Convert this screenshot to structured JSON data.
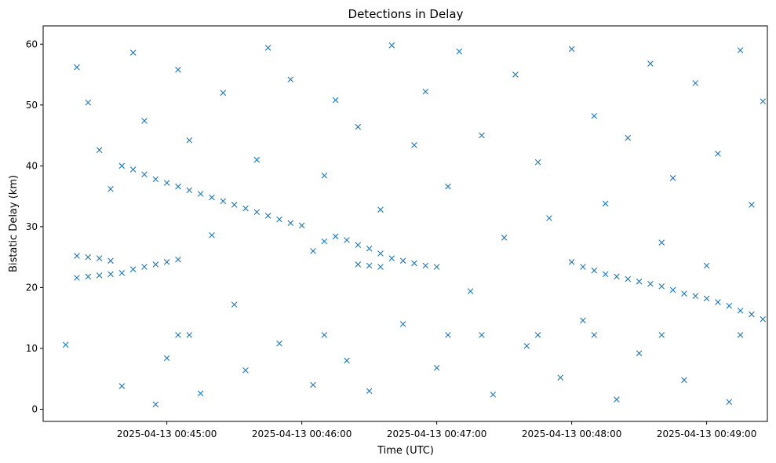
{
  "chart_data": {
    "type": "scatter",
    "title": "Detections in Delay",
    "xlabel": "Time (UTC)",
    "ylabel": "Bistatic Delay (km)",
    "xlim": [
      "2025-04-13 00:44:05",
      "2025-04-13 00:49:27"
    ],
    "ylim": [
      -2,
      63
    ],
    "x_ticks": [
      "2025-04-13 00:45:00",
      "2025-04-13 00:46:00",
      "2025-04-13 00:47:00",
      "2025-04-13 00:48:00",
      "2025-04-13 00:49:00"
    ],
    "y_ticks": [
      "0",
      "10",
      "20",
      "30",
      "40",
      "50",
      "60"
    ],
    "marker": "x",
    "color": "#1f77b4",
    "grid": false,
    "legend": "none",
    "series": [
      {
        "values": [
          {
            "x": "2025-04-13 00:44:20",
            "y": 21.6
          },
          {
            "x": "2025-04-13 00:44:25",
            "y": 21.8
          },
          {
            "x": "2025-04-13 00:44:30",
            "y": 22.0
          },
          {
            "x": "2025-04-13 00:44:35",
            "y": 22.2
          },
          {
            "x": "2025-04-13 00:44:40",
            "y": 22.4
          },
          {
            "x": "2025-04-13 00:44:45",
            "y": 23.0
          },
          {
            "x": "2025-04-13 00:44:50",
            "y": 23.4
          },
          {
            "x": "2025-04-13 00:44:55",
            "y": 23.8
          },
          {
            "x": "2025-04-13 00:45:00",
            "y": 24.2
          },
          {
            "x": "2025-04-13 00:45:05",
            "y": 24.6
          },
          {
            "x": "2025-04-13 00:44:20",
            "y": 25.2
          },
          {
            "x": "2025-04-13 00:44:25",
            "y": 25.0
          },
          {
            "x": "2025-04-13 00:44:30",
            "y": 24.8
          },
          {
            "x": "2025-04-13 00:44:35",
            "y": 24.4
          },
          {
            "x": "2025-04-13 00:44:40",
            "y": 40.0
          },
          {
            "x": "2025-04-13 00:44:45",
            "y": 39.4
          },
          {
            "x": "2025-04-13 00:44:50",
            "y": 38.6
          },
          {
            "x": "2025-04-13 00:44:55",
            "y": 37.8
          },
          {
            "x": "2025-04-13 00:45:00",
            "y": 37.2
          },
          {
            "x": "2025-04-13 00:45:05",
            "y": 36.6
          },
          {
            "x": "2025-04-13 00:45:10",
            "y": 36.0
          },
          {
            "x": "2025-04-13 00:45:15",
            "y": 35.4
          },
          {
            "x": "2025-04-13 00:45:20",
            "y": 34.8
          },
          {
            "x": "2025-04-13 00:45:25",
            "y": 34.2
          },
          {
            "x": "2025-04-13 00:45:30",
            "y": 33.6
          },
          {
            "x": "2025-04-13 00:45:35",
            "y": 33.0
          },
          {
            "x": "2025-04-13 00:45:40",
            "y": 32.4
          },
          {
            "x": "2025-04-13 00:45:45",
            "y": 31.8
          },
          {
            "x": "2025-04-13 00:45:50",
            "y": 31.2
          },
          {
            "x": "2025-04-13 00:45:55",
            "y": 30.6
          },
          {
            "x": "2025-04-13 00:46:00",
            "y": 30.2
          },
          {
            "x": "2025-04-13 00:46:05",
            "y": 26.0
          },
          {
            "x": "2025-04-13 00:46:10",
            "y": 27.6
          },
          {
            "x": "2025-04-13 00:46:15",
            "y": 28.4
          },
          {
            "x": "2025-04-13 00:46:20",
            "y": 27.8
          },
          {
            "x": "2025-04-13 00:46:25",
            "y": 27.0
          },
          {
            "x": "2025-04-13 00:46:30",
            "y": 26.4
          },
          {
            "x": "2025-04-13 00:46:35",
            "y": 25.6
          },
          {
            "x": "2025-04-13 00:46:40",
            "y": 24.8
          },
          {
            "x": "2025-04-13 00:46:45",
            "y": 24.4
          },
          {
            "x": "2025-04-13 00:46:50",
            "y": 24.0
          },
          {
            "x": "2025-04-13 00:46:55",
            "y": 23.6
          },
          {
            "x": "2025-04-13 00:47:00",
            "y": 23.4
          },
          {
            "x": "2025-04-13 00:46:25",
            "y": 23.8
          },
          {
            "x": "2025-04-13 00:46:30",
            "y": 23.6
          },
          {
            "x": "2025-04-13 00:46:35",
            "y": 23.4
          },
          {
            "x": "2025-04-13 00:48:00",
            "y": 24.2
          },
          {
            "x": "2025-04-13 00:48:05",
            "y": 23.4
          },
          {
            "x": "2025-04-13 00:48:10",
            "y": 22.8
          },
          {
            "x": "2025-04-13 00:48:15",
            "y": 22.2
          },
          {
            "x": "2025-04-13 00:48:20",
            "y": 21.8
          },
          {
            "x": "2025-04-13 00:48:25",
            "y": 21.4
          },
          {
            "x": "2025-04-13 00:48:30",
            "y": 21.0
          },
          {
            "x": "2025-04-13 00:48:35",
            "y": 20.6
          },
          {
            "x": "2025-04-13 00:48:40",
            "y": 20.2
          },
          {
            "x": "2025-04-13 00:48:45",
            "y": 19.6
          },
          {
            "x": "2025-04-13 00:48:50",
            "y": 19.0
          },
          {
            "x": "2025-04-13 00:48:55",
            "y": 18.6
          },
          {
            "x": "2025-04-13 00:49:00",
            "y": 18.2
          },
          {
            "x": "2025-04-13 00:49:05",
            "y": 17.6
          },
          {
            "x": "2025-04-13 00:49:10",
            "y": 17.0
          },
          {
            "x": "2025-04-13 00:49:15",
            "y": 16.2
          },
          {
            "x": "2025-04-13 00:49:20",
            "y": 15.6
          },
          {
            "x": "2025-04-13 00:49:25",
            "y": 14.8
          },
          {
            "x": "2025-04-13 00:45:05",
            "y": 12.2
          },
          {
            "x": "2025-04-13 00:45:10",
            "y": 12.2
          },
          {
            "x": "2025-04-13 00:46:10",
            "y": 12.2
          },
          {
            "x": "2025-04-13 00:47:05",
            "y": 12.2
          },
          {
            "x": "2025-04-13 00:47:20",
            "y": 12.2
          },
          {
            "x": "2025-04-13 00:47:45",
            "y": 12.2
          },
          {
            "x": "2025-04-13 00:48:10",
            "y": 12.2
          },
          {
            "x": "2025-04-13 00:48:40",
            "y": 12.2
          },
          {
            "x": "2025-04-13 00:49:15",
            "y": 12.2
          },
          {
            "x": "2025-04-13 00:44:15",
            "y": 10.6
          },
          {
            "x": "2025-04-13 00:44:20",
            "y": 56.2
          },
          {
            "x": "2025-04-13 00:44:25",
            "y": 50.4
          },
          {
            "x": "2025-04-13 00:44:30",
            "y": 42.6
          },
          {
            "x": "2025-04-13 00:44:35",
            "y": 36.2
          },
          {
            "x": "2025-04-13 00:44:40",
            "y": 3.8
          },
          {
            "x": "2025-04-13 00:44:45",
            "y": 58.6
          },
          {
            "x": "2025-04-13 00:44:50",
            "y": 47.4
          },
          {
            "x": "2025-04-13 00:44:55",
            "y": 0.8
          },
          {
            "x": "2025-04-13 00:45:00",
            "y": 8.4
          },
          {
            "x": "2025-04-13 00:45:05",
            "y": 55.8
          },
          {
            "x": "2025-04-13 00:45:10",
            "y": 44.2
          },
          {
            "x": "2025-04-13 00:45:15",
            "y": 2.6
          },
          {
            "x": "2025-04-13 00:45:20",
            "y": 28.6
          },
          {
            "x": "2025-04-13 00:45:25",
            "y": 52.0
          },
          {
            "x": "2025-04-13 00:45:30",
            "y": 17.2
          },
          {
            "x": "2025-04-13 00:45:35",
            "y": 6.4
          },
          {
            "x": "2025-04-13 00:45:40",
            "y": 41.0
          },
          {
            "x": "2025-04-13 00:45:45",
            "y": 59.4
          },
          {
            "x": "2025-04-13 00:45:50",
            "y": 10.8
          },
          {
            "x": "2025-04-13 00:45:55",
            "y": 54.2
          },
          {
            "x": "2025-04-13 00:46:05",
            "y": 4.0
          },
          {
            "x": "2025-04-13 00:46:10",
            "y": 38.4
          },
          {
            "x": "2025-04-13 00:46:15",
            "y": 50.8
          },
          {
            "x": "2025-04-13 00:46:20",
            "y": 8.0
          },
          {
            "x": "2025-04-13 00:46:25",
            "y": 46.4
          },
          {
            "x": "2025-04-13 00:46:30",
            "y": 3.0
          },
          {
            "x": "2025-04-13 00:46:35",
            "y": 32.8
          },
          {
            "x": "2025-04-13 00:46:40",
            "y": 59.8
          },
          {
            "x": "2025-04-13 00:46:45",
            "y": 14.0
          },
          {
            "x": "2025-04-13 00:46:50",
            "y": 43.4
          },
          {
            "x": "2025-04-13 00:46:55",
            "y": 52.2
          },
          {
            "x": "2025-04-13 00:47:00",
            "y": 6.8
          },
          {
            "x": "2025-04-13 00:47:05",
            "y": 36.6
          },
          {
            "x": "2025-04-13 00:47:10",
            "y": 58.8
          },
          {
            "x": "2025-04-13 00:47:15",
            "y": 19.4
          },
          {
            "x": "2025-04-13 00:47:20",
            "y": 45.0
          },
          {
            "x": "2025-04-13 00:47:25",
            "y": 2.4
          },
          {
            "x": "2025-04-13 00:47:30",
            "y": 28.2
          },
          {
            "x": "2025-04-13 00:47:35",
            "y": 55.0
          },
          {
            "x": "2025-04-13 00:47:40",
            "y": 10.4
          },
          {
            "x": "2025-04-13 00:47:45",
            "y": 40.6
          },
          {
            "x": "2025-04-13 00:47:50",
            "y": 31.4
          },
          {
            "x": "2025-04-13 00:47:55",
            "y": 5.2
          },
          {
            "x": "2025-04-13 00:48:00",
            "y": 59.2
          },
          {
            "x": "2025-04-13 00:48:05",
            "y": 14.6
          },
          {
            "x": "2025-04-13 00:48:10",
            "y": 48.2
          },
          {
            "x": "2025-04-13 00:48:15",
            "y": 33.8
          },
          {
            "x": "2025-04-13 00:48:20",
            "y": 1.6
          },
          {
            "x": "2025-04-13 00:48:25",
            "y": 44.6
          },
          {
            "x": "2025-04-13 00:48:30",
            "y": 9.2
          },
          {
            "x": "2025-04-13 00:48:35",
            "y": 56.8
          },
          {
            "x": "2025-04-13 00:48:40",
            "y": 27.4
          },
          {
            "x": "2025-04-13 00:48:45",
            "y": 38.0
          },
          {
            "x": "2025-04-13 00:48:50",
            "y": 4.8
          },
          {
            "x": "2025-04-13 00:48:55",
            "y": 53.6
          },
          {
            "x": "2025-04-13 00:49:00",
            "y": 23.6
          },
          {
            "x": "2025-04-13 00:49:05",
            "y": 42.0
          },
          {
            "x": "2025-04-13 00:49:10",
            "y": 1.2
          },
          {
            "x": "2025-04-13 00:49:15",
            "y": 59.0
          },
          {
            "x": "2025-04-13 00:49:20",
            "y": 33.6
          },
          {
            "x": "2025-04-13 00:49:25",
            "y": 50.6
          }
        ]
      }
    ]
  }
}
